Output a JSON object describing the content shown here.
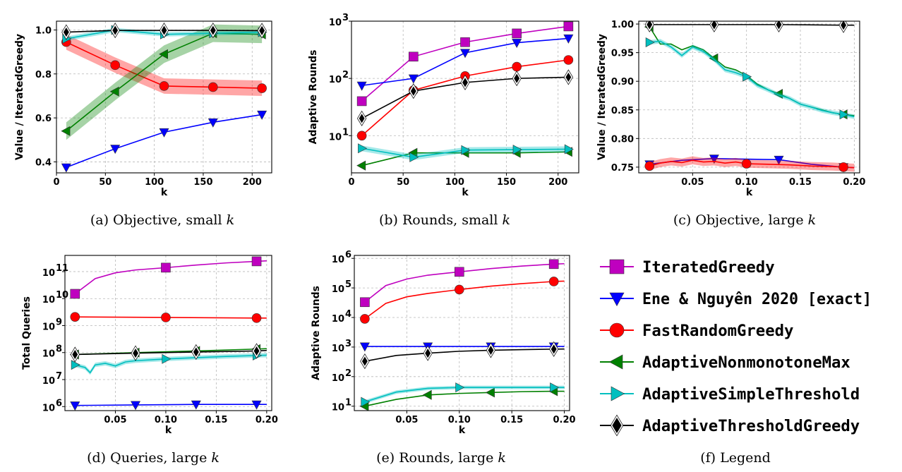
{
  "series_styles": [
    {
      "name": "IteratedGreedy",
      "color": "#bf00bf",
      "marker": "square"
    },
    {
      "name": "Ene & Nguyên 2020 [exact]",
      "color": "#0000ff",
      "marker": "triangle-down"
    },
    {
      "name": "FastRandomGreedy",
      "color": "#ff0000",
      "marker": "circle"
    },
    {
      "name": "AdaptiveNonmonotoneMax",
      "color": "#008000",
      "marker": "triangle-left"
    },
    {
      "name": "AdaptiveSimpleThreshold",
      "color": "#00bfbf",
      "marker": "triangle-right"
    },
    {
      "name": "AdaptiveThresholdGreedy",
      "color": "#000000",
      "marker": "diamond"
    }
  ],
  "legend": {
    "caption": "(f) Legend",
    "entries": [
      "IteratedGreedy",
      "Ene & Nguyên 2020 [exact]",
      "FastRandomGreedy",
      "AdaptiveNonmonotoneMax",
      "AdaptiveSimpleThreshold",
      "AdaptiveThresholdGreedy"
    ]
  },
  "chart_data": [
    {
      "id": "a",
      "type": "line",
      "caption": "(a) Objective, small k",
      "scale": "linear",
      "xlabel": "k",
      "ylabel": "Value / IteratedGreedy",
      "xlim": [
        0,
        220
      ],
      "ylim": [
        0.35,
        1.04
      ],
      "xticks": [
        0,
        50,
        100,
        150,
        200
      ],
      "xtick_labels": [
        "0",
        "50",
        "100",
        "150",
        "200"
      ],
      "yticks": [
        0.4,
        0.6,
        0.8,
        1.0
      ],
      "ytick_labels": [
        "0.4",
        "0.6",
        "0.8",
        "1.0"
      ],
      "series": [
        {
          "name": "Ene & Nguyên 2020 [exact]",
          "x": [
            10,
            60,
            110,
            160,
            210
          ],
          "y": [
            0.375,
            0.46,
            0.535,
            0.58,
            0.615
          ],
          "markers": [
            10,
            60,
            110,
            160,
            210
          ]
        },
        {
          "name": "FastRandomGreedy",
          "x": [
            10,
            60,
            110,
            160,
            210
          ],
          "y": [
            0.945,
            0.84,
            0.745,
            0.74,
            0.735
          ],
          "band": 0.035,
          "markers": [
            10,
            60,
            110,
            160,
            210
          ]
        },
        {
          "name": "AdaptiveNonmonotoneMax",
          "x": [
            10,
            60,
            110,
            160,
            210
          ],
          "y": [
            0.54,
            0.72,
            0.89,
            0.985,
            0.98
          ],
          "band": 0.04,
          "markers": [
            10,
            60,
            110,
            160,
            210
          ]
        },
        {
          "name": "AdaptiveSimpleThreshold",
          "x": [
            10,
            60,
            110,
            160,
            210
          ],
          "y": [
            0.96,
            1.0,
            0.98,
            0.985,
            0.99
          ],
          "band": 0.01,
          "markers": [
            10,
            60,
            110,
            160,
            210
          ]
        },
        {
          "name": "AdaptiveThresholdGreedy",
          "x": [
            10,
            60,
            110,
            160,
            210
          ],
          "y": [
            0.99,
            0.998,
            0.998,
            0.998,
            0.997
          ],
          "markers": [
            10,
            60,
            110,
            160,
            210
          ]
        }
      ]
    },
    {
      "id": "b",
      "type": "line",
      "caption": "(b) Rounds, small k",
      "scale": "log",
      "xlabel": "k",
      "ylabel": "Adaptive Rounds",
      "xlim": [
        0,
        220
      ],
      "ylim_exp": [
        0.35,
        3.0
      ],
      "xticks": [
        0,
        50,
        100,
        150,
        200
      ],
      "xtick_labels": [
        "0",
        "50",
        "100",
        "150",
        "200"
      ],
      "yticks_exp": [
        1,
        2,
        3
      ],
      "ytick_base": "10",
      "ytick_exps": [
        "1",
        "2",
        "3"
      ],
      "series": [
        {
          "name": "IteratedGreedy",
          "x": [
            10,
            60,
            110,
            160,
            210
          ],
          "y": [
            40,
            240,
            430,
            610,
            810
          ],
          "markers": [
            10,
            60,
            110,
            160,
            210
          ]
        },
        {
          "name": "Ene & Nguyên 2020 [exact]",
          "x": [
            10,
            60,
            110,
            160,
            210
          ],
          "y": [
            75,
            100,
            280,
            420,
            500
          ],
          "markers": [
            10,
            60,
            110,
            160,
            210
          ]
        },
        {
          "name": "FastRandomGreedy",
          "x": [
            10,
            60,
            110,
            160,
            210
          ],
          "y": [
            10,
            62,
            110,
            160,
            210
          ],
          "markers": [
            10,
            60,
            110,
            160,
            210
          ]
        },
        {
          "name": "AdaptiveNonmonotoneMax",
          "x": [
            10,
            60,
            110,
            160,
            210
          ],
          "y": [
            3,
            5,
            5,
            5,
            5.2
          ],
          "markers": [
            10,
            60,
            110,
            160,
            210
          ]
        },
        {
          "name": "AdaptiveSimpleThreshold",
          "x": [
            10,
            60,
            110,
            160,
            210
          ],
          "y": [
            6,
            4.2,
            5.6,
            5.7,
            5.8
          ],
          "band_log": 0.05,
          "markers": [
            10,
            60,
            110,
            160,
            210
          ]
        },
        {
          "name": "AdaptiveThresholdGreedy",
          "x": [
            10,
            60,
            110,
            160,
            210
          ],
          "y": [
            20,
            60,
            85,
            100,
            105
          ],
          "markers": [
            10,
            60,
            110,
            160,
            210
          ]
        }
      ]
    },
    {
      "id": "c",
      "type": "line",
      "caption": "(c) Objective, large k",
      "scale": "linear",
      "xlabel": "k",
      "ylabel": "Value / IteratedGreedy",
      "xlim": [
        0,
        0.205
      ],
      "ylim": [
        0.74,
        1.005
      ],
      "xticks": [
        0.05,
        0.1,
        0.15,
        0.2
      ],
      "xtick_labels": [
        "0.05",
        "0.10",
        "0.15",
        "0.20"
      ],
      "yticks": [
        0.75,
        0.8,
        0.85,
        0.9,
        0.95,
        1.0
      ],
      "ytick_labels": [
        "0.75",
        "0.80",
        "0.85",
        "0.90",
        "0.95",
        "1.00"
      ],
      "series": [
        {
          "name": "Ene & Nguyên 2020 [exact]",
          "x": [
            0.01,
            0.04,
            0.07,
            0.1,
            0.13,
            0.16,
            0.19,
            0.2
          ],
          "y": [
            0.755,
            0.762,
            0.765,
            0.764,
            0.763,
            0.755,
            0.75,
            0.749
          ],
          "markers": [
            0.01,
            0.07,
            0.13,
            0.19
          ]
        },
        {
          "name": "FastRandomGreedy",
          "x": [
            0.01,
            0.02,
            0.03,
            0.04,
            0.05,
            0.06,
            0.07,
            0.08,
            0.09,
            0.1,
            0.12,
            0.14,
            0.16,
            0.18,
            0.19,
            0.2
          ],
          "y": [
            0.752,
            0.757,
            0.76,
            0.758,
            0.762,
            0.759,
            0.76,
            0.757,
            0.759,
            0.756,
            0.755,
            0.754,
            0.752,
            0.751,
            0.75,
            0.749
          ],
          "band": 0.007,
          "markers": [
            0.01,
            0.1,
            0.19
          ]
        },
        {
          "name": "AdaptiveNonmonotoneMax",
          "x": [
            0.01,
            0.02,
            0.03,
            0.04,
            0.05,
            0.06,
            0.07,
            0.08,
            0.09,
            0.1,
            0.11,
            0.12,
            0.13,
            0.14,
            0.15,
            0.16,
            0.17,
            0.18,
            0.19,
            0.2
          ],
          "y": [
            0.995,
            0.965,
            0.965,
            0.955,
            0.962,
            0.955,
            0.94,
            0.925,
            0.92,
            0.91,
            0.895,
            0.885,
            0.878,
            0.87,
            0.86,
            0.855,
            0.85,
            0.845,
            0.842,
            0.84
          ],
          "markers": [
            0.01,
            0.07,
            0.13,
            0.19
          ]
        },
        {
          "name": "AdaptiveSimpleThreshold",
          "x": [
            0.01,
            0.02,
            0.03,
            0.04,
            0.05,
            0.06,
            0.07,
            0.08,
            0.09,
            0.1,
            0.11,
            0.12,
            0.13,
            0.14,
            0.15,
            0.16,
            0.17,
            0.18,
            0.19,
            0.2
          ],
          "y": [
            0.968,
            0.97,
            0.96,
            0.945,
            0.96,
            0.952,
            0.938,
            0.92,
            0.915,
            0.908,
            0.893,
            0.885,
            0.876,
            0.87,
            0.86,
            0.855,
            0.849,
            0.845,
            0.842,
            0.838
          ],
          "band": 0.004,
          "markers": [
            0.01,
            0.1,
            0.19
          ]
        },
        {
          "name": "AdaptiveThresholdGreedy",
          "x": [
            0.01,
            0.07,
            0.13,
            0.19,
            0.2
          ],
          "y": [
            0.999,
            0.999,
            0.999,
            0.998,
            0.998
          ],
          "markers": [
            0.01,
            0.07,
            0.13,
            0.19
          ]
        }
      ]
    },
    {
      "id": "d",
      "type": "line",
      "caption": "(d) Queries, large k",
      "scale": "log",
      "xlabel": "k",
      "ylabel": "Total Queries",
      "xlim": [
        0,
        0.205
      ],
      "ylim_exp": [
        5.85,
        11.6
      ],
      "xticks": [
        0.05,
        0.1,
        0.15,
        0.2
      ],
      "xtick_labels": [
        "0.05",
        "0.10",
        "0.15",
        "0.20"
      ],
      "yticks_exp": [
        6,
        7,
        8,
        9,
        10,
        11
      ],
      "ytick_base": "10",
      "ytick_exps": [
        "6",
        "7",
        "8",
        "9",
        "10",
        "11"
      ],
      "series": [
        {
          "name": "IteratedGreedy",
          "x": [
            0.01,
            0.03,
            0.05,
            0.07,
            0.1,
            0.13,
            0.16,
            0.19,
            0.2
          ],
          "y": [
            15000000000.0,
            55000000000.0,
            90000000000.0,
            115000000000.0,
            140000000000.0,
            175000000000.0,
            210000000000.0,
            240000000000.0,
            250000000000.0
          ],
          "markers": [
            0.01,
            0.1,
            0.19
          ]
        },
        {
          "name": "Ene & Nguyên 2020 [exact]",
          "x": [
            0.01,
            0.07,
            0.13,
            0.19,
            0.2
          ],
          "y": [
            1100000.0,
            1150000.0,
            1200000.0,
            1200000.0,
            1200000.0
          ],
          "markers": [
            0.01,
            0.07,
            0.13,
            0.19
          ]
        },
        {
          "name": "FastRandomGreedy",
          "x": [
            0.01,
            0.1,
            0.19,
            0.2
          ],
          "y": [
            2100000000.0,
            2000000000.0,
            1900000000.0,
            1900000000.0
          ],
          "markers": [
            0.01,
            0.1,
            0.19
          ]
        },
        {
          "name": "AdaptiveNonmonotoneMax",
          "x": [
            0.01,
            0.07,
            0.13,
            0.19,
            0.2
          ],
          "y": [
            85000000.0,
            100000000.0,
            115000000.0,
            135000000.0,
            140000000.0
          ],
          "markers": [
            0.01,
            0.07,
            0.13,
            0.19
          ]
        },
        {
          "name": "AdaptiveSimpleThreshold",
          "x": [
            0.01,
            0.02,
            0.025,
            0.03,
            0.04,
            0.05,
            0.06,
            0.07,
            0.1,
            0.13,
            0.16,
            0.19,
            0.2
          ],
          "y": [
            35000000.0,
            28000000.0,
            18000000.0,
            35000000.0,
            40000000.0,
            32000000.0,
            45000000.0,
            50000000.0,
            58000000.0,
            65000000.0,
            72000000.0,
            78000000.0,
            80000000.0
          ],
          "band_log": 0.08,
          "markers": [
            0.01,
            0.1,
            0.19
          ]
        },
        {
          "name": "AdaptiveThresholdGreedy",
          "x": [
            0.01,
            0.07,
            0.13,
            0.19,
            0.2
          ],
          "y": [
            85000000.0,
            95000000.0,
            105000000.0,
            115000000.0,
            120000000.0
          ],
          "markers": [
            0.01,
            0.07,
            0.13,
            0.19
          ]
        }
      ]
    },
    {
      "id": "e",
      "type": "line",
      "caption": "(e) Rounds, large k",
      "scale": "log",
      "xlabel": "k",
      "ylabel": "Adaptive Rounds",
      "xlim": [
        0,
        0.205
      ],
      "ylim_exp": [
        0.85,
        6.1
      ],
      "xticks": [
        0.05,
        0.1,
        0.15,
        0.2
      ],
      "xtick_labels": [
        "0.05",
        "0.10",
        "0.15",
        "0.20"
      ],
      "yticks_exp": [
        1,
        2,
        3,
        4,
        5,
        6
      ],
      "ytick_base": "10",
      "ytick_exps": [
        "1",
        "2",
        "3",
        "4",
        "5",
        "6"
      ],
      "series": [
        {
          "name": "IteratedGreedy",
          "x": [
            0.01,
            0.03,
            0.05,
            0.07,
            0.1,
            0.13,
            0.16,
            0.19,
            0.2
          ],
          "y": [
            33000.0,
            120000.0,
            200000.0,
            270000.0,
            350000.0,
            450000.0,
            550000.0,
            640000.0,
            660000.0
          ],
          "markers": [
            0.01,
            0.1,
            0.19
          ]
        },
        {
          "name": "Ene & Nguyên 2020 [exact]",
          "x": [
            0.01,
            0.07,
            0.13,
            0.19,
            0.2
          ],
          "y": [
            1050,
            1050,
            1050,
            1050,
            1050
          ],
          "markers": [
            0.01,
            0.07,
            0.13,
            0.19
          ]
        },
        {
          "name": "FastRandomGreedy",
          "x": [
            0.01,
            0.03,
            0.05,
            0.07,
            0.1,
            0.13,
            0.16,
            0.19,
            0.2
          ],
          "y": [
            9000,
            30000.0,
            50000.0,
            65000.0,
            88000.0,
            115000.0,
            140000.0,
            165000.0,
            170000.0
          ],
          "markers": [
            0.01,
            0.1,
            0.19
          ]
        },
        {
          "name": "AdaptiveNonmonotoneMax",
          "x": [
            0.01,
            0.04,
            0.07,
            0.1,
            0.13,
            0.16,
            0.19,
            0.2
          ],
          "y": [
            10,
            17,
            24,
            27,
            29,
            31,
            32,
            32
          ],
          "markers": [
            0.01,
            0.07,
            0.13,
            0.19
          ]
        },
        {
          "name": "AdaptiveSimpleThreshold",
          "x": [
            0.01,
            0.04,
            0.07,
            0.1,
            0.13,
            0.16,
            0.19,
            0.2
          ],
          "y": [
            14,
            30,
            40,
            43,
            43,
            43,
            43,
            43
          ],
          "band_log": 0.06,
          "markers": [
            0.01,
            0.1,
            0.19
          ]
        },
        {
          "name": "AdaptiveThresholdGreedy",
          "x": [
            0.01,
            0.04,
            0.07,
            0.1,
            0.13,
            0.16,
            0.19,
            0.2
          ],
          "y": [
            330,
            520,
            620,
            720,
            780,
            820,
            850,
            860
          ],
          "markers": [
            0.01,
            0.07,
            0.13,
            0.19
          ]
        }
      ]
    }
  ]
}
